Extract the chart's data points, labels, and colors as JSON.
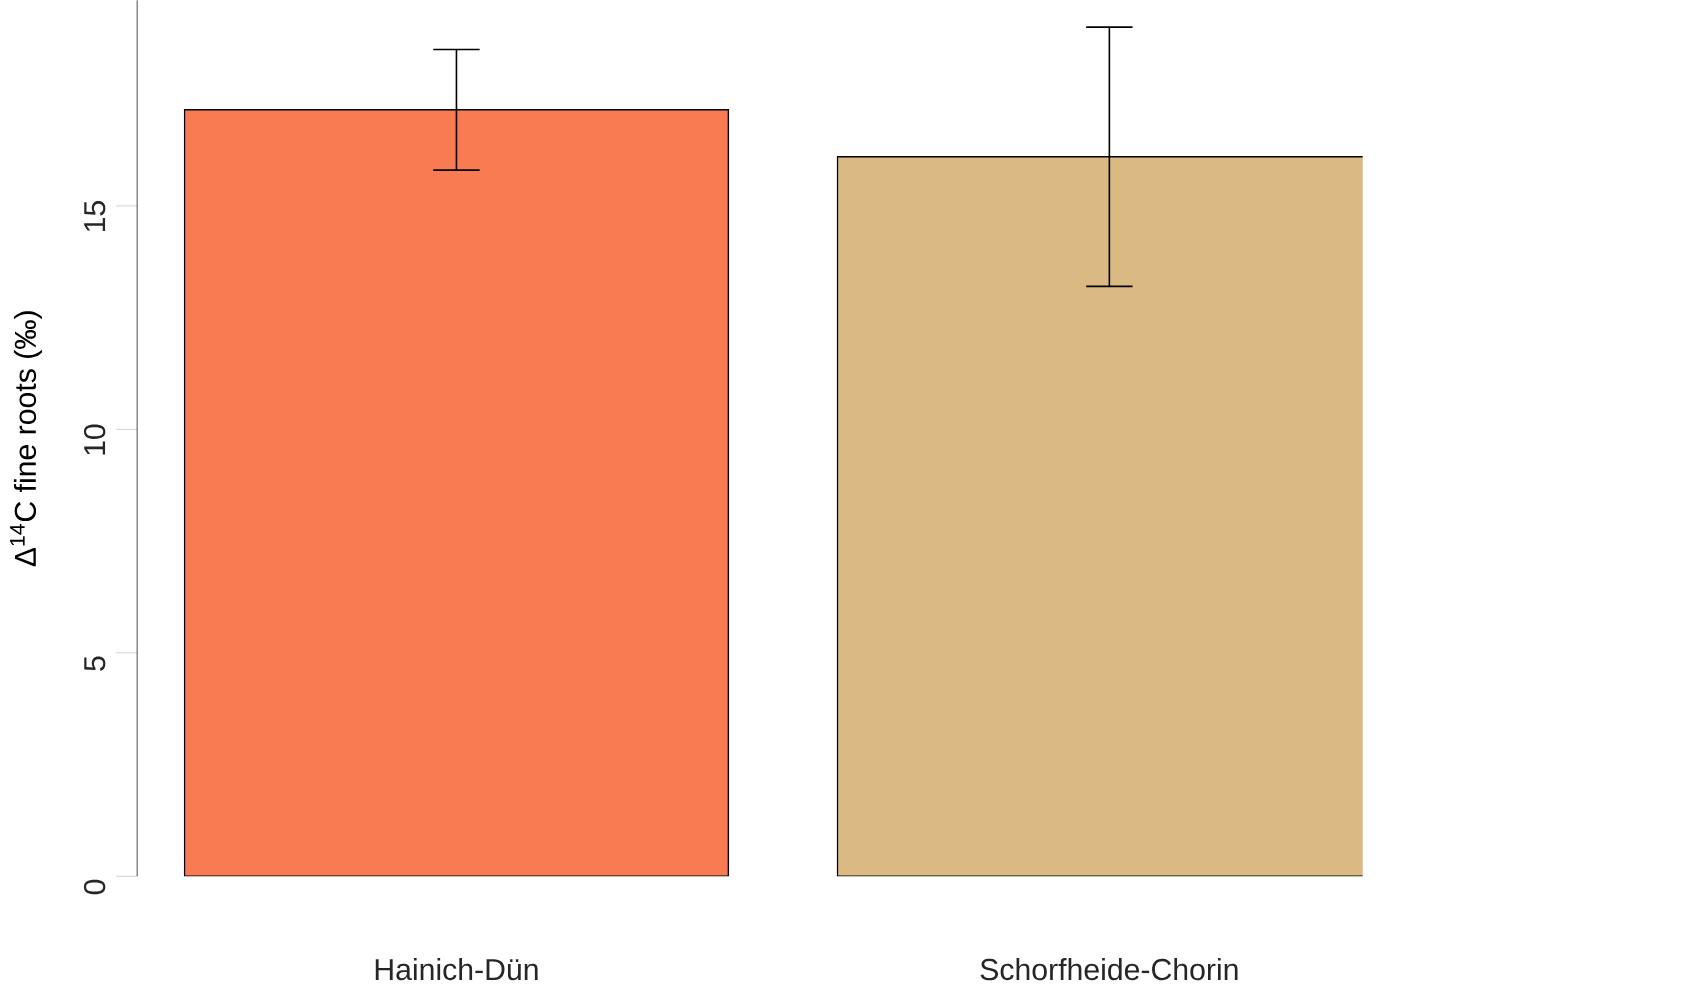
{
  "chart_data": {
    "type": "bar",
    "ylabel": "Δ$^{14}$C fine roots (‰)",
    "categories": [
      "Hainich-Dün",
      "Schorfheide-Chorin"
    ],
    "values": [
      17.15,
      16.1
    ],
    "colors": [
      "#f97b51",
      "#dbb983"
    ],
    "errors": [
      1.35,
      2.9
    ],
    "ylim": [
      0,
      19.6
    ],
    "yticks": [
      0,
      5,
      10,
      15
    ]
  }
}
